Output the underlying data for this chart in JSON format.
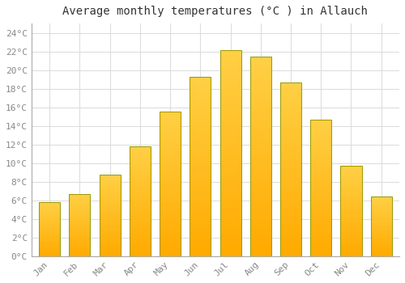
{
  "title": "Average monthly temperatures (°C ) in Allauch",
  "months": [
    "Jan",
    "Feb",
    "Mar",
    "Apr",
    "May",
    "Jun",
    "Jul",
    "Aug",
    "Sep",
    "Oct",
    "Nov",
    "Dec"
  ],
  "values": [
    5.8,
    6.7,
    8.8,
    11.8,
    15.5,
    19.3,
    22.1,
    21.4,
    18.7,
    14.7,
    9.7,
    6.4
  ],
  "ylim": [
    0,
    25
  ],
  "yticks": [
    0,
    2,
    4,
    6,
    8,
    10,
    12,
    14,
    16,
    18,
    20,
    22,
    24
  ],
  "bar_color_main": "#FFAA00",
  "bar_color_light": "#FFD045",
  "bar_edge_color": "#999900",
  "background_color": "#FFFFFF",
  "plot_bg_color": "#FFFFFF",
  "grid_color": "#DDDDDD",
  "title_fontsize": 10,
  "tick_fontsize": 8,
  "tick_color": "#888888",
  "bar_width": 0.7
}
